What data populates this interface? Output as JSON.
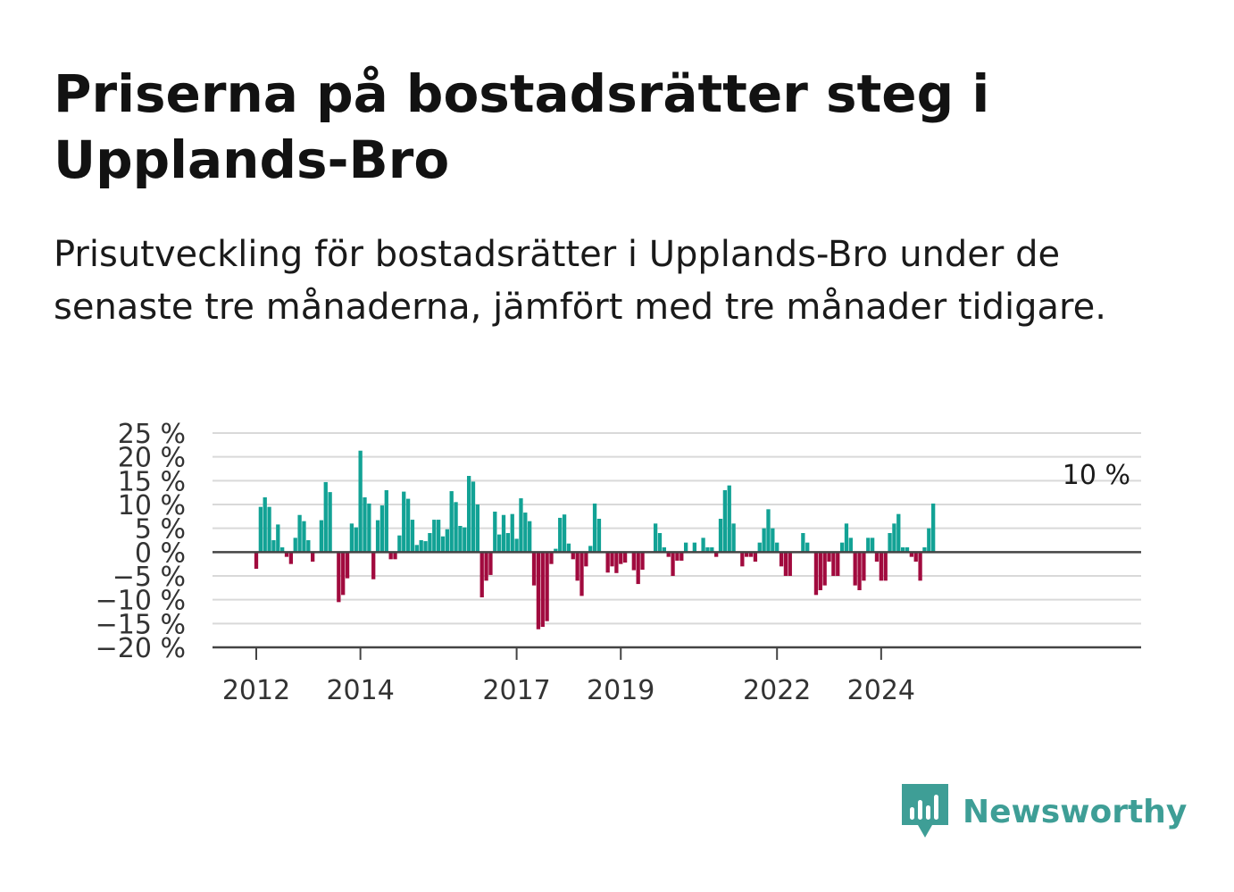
{
  "title": "Priserna på bostadsrätter steg i Upplands-Bro",
  "subtitle": "Prisutveckling för bostadsrätter i Upplands-Bro under de senaste tre månaderna, jämfört med tre månader tidigare.",
  "logo_text": "Newsworthy",
  "colors": {
    "positive": "#12a295",
    "negative": "#a10a3e",
    "grid": "#d9d9d9",
    "zero": "#444444",
    "brand": "#3e9e96"
  },
  "chart_data": {
    "type": "bar",
    "title": "",
    "xlabel": "",
    "ylabel": "",
    "ylim": [
      -20,
      25
    ],
    "unit": "%",
    "grid": true,
    "y_ticks": [
      25,
      20,
      15,
      10,
      5,
      0,
      -5,
      -10,
      -15,
      -20
    ],
    "y_tick_labels": [
      "25 %",
      "20 %",
      "15 %",
      "10 %",
      "5 %",
      "0 %",
      "−5 %",
      "−10 %",
      "−15 %",
      "−20 %"
    ],
    "x_tick_labels": [
      {
        "label": "2012",
        "date": "2012-01"
      },
      {
        "label": "2014",
        "date": "2014-01"
      },
      {
        "label": "2017",
        "date": "2017-01"
      },
      {
        "label": "2019",
        "date": "2019-01"
      },
      {
        "label": "2022",
        "date": "2022-01"
      },
      {
        "label": "2024",
        "date": "2024-01"
      }
    ],
    "annotation": "10 %",
    "start": "2012-01",
    "values": [
      -3.5,
      9.5,
      11.5,
      9.5,
      2.5,
      5.8,
      1,
      -1,
      -2.5,
      3,
      7.8,
      6.5,
      2.5,
      -2,
      0,
      6.7,
      14.7,
      12.6,
      0,
      -10.5,
      -9,
      -5.5,
      6,
      5.2,
      21.3,
      11.5,
      10.2,
      -5.7,
      6.7,
      9.8,
      13,
      -1.5,
      -1.5,
      3.5,
      12.7,
      11.2,
      6.8,
      1.5,
      2.5,
      2.3,
      4,
      6.8,
      6.8,
      3.3,
      4.8,
      12.8,
      10.5,
      5.5,
      5.2,
      16,
      14.8,
      10,
      -9.5,
      -6,
      -4.8,
      8.5,
      3.7,
      7.8,
      4,
      8,
      2.8,
      11.3,
      8.3,
      6.5,
      -7,
      -16.2,
      -15.7,
      -14.5,
      -2.5,
      0.7,
      7.2,
      7.9,
      1.8,
      -1.5,
      -6,
      -9.2,
      -3,
      1.3,
      10.2,
      7,
      0,
      -4.3,
      -3,
      -4.4,
      -2.5,
      -2.2,
      0,
      -3.8,
      -6.7,
      -3.7,
      0,
      0,
      6,
      4,
      1,
      -1,
      -5,
      -1.8,
      -1.8,
      2,
      0,
      2,
      0,
      3,
      1,
      1,
      -1,
      7,
      13,
      14,
      6,
      0,
      -3,
      -1,
      -1,
      -2,
      2,
      5,
      9,
      5,
      2,
      -3,
      -5,
      -5,
      0,
      0,
      4,
      2,
      0,
      -9,
      -8,
      -7,
      -2,
      -5,
      -5,
      2,
      6,
      3,
      -7,
      -8,
      -6,
      3,
      3,
      -2,
      -6,
      -6,
      4,
      6,
      8,
      1,
      1,
      -1,
      -2,
      -6,
      1,
      5,
      10.2
    ]
  }
}
